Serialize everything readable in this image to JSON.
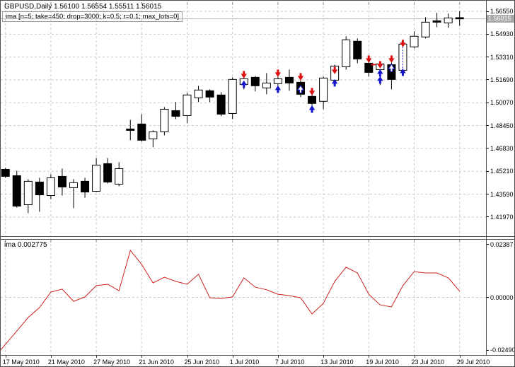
{
  "header": {
    "symbol_line": "GBPUSD,Daily  1.56100 1.56554 1.55511 1.56015",
    "indicator_line": "ima [n=5; take=450; drop=3000; k=0.5; r=0.1; max_lots=0]"
  },
  "subwindow": {
    "label": "ima 0.002775"
  },
  "colors": {
    "grid": "#c9c9c9",
    "bull_body": "#ffffff",
    "bear_body": "#000000",
    "outline": "#000000",
    "indicator_line": "#cc2222",
    "sell_arrow": "#dd1111",
    "buy_arrow": "#1515cc",
    "buy_arrow_white": "#ffffff",
    "price_line": "#b8b8b8",
    "badge_bg": "#a8a8a8",
    "badge_text": "#ffffff",
    "edge_ticks": "#909090"
  },
  "chart_data": {
    "type": "candlestick+line",
    "symbol": "GBPUSD",
    "timeframe": "Daily",
    "ohlc_display": {
      "open": "1.56100",
      "high": "1.56554",
      "low": "1.55511",
      "close": "1.56015"
    },
    "price_axis": {
      "ticks": [
        "1.56550",
        "1.54930",
        "1.53310",
        "1.51690",
        "1.50070",
        "1.48450",
        "1.46830",
        "1.45210",
        "1.43590",
        "1.41970"
      ],
      "current_price": "1.56015",
      "current_price_value": 1.56015
    },
    "indicator_axis": {
      "ticks": [
        "0.02387",
        "0.00000",
        "-0.02490"
      ],
      "tick_values": [
        0.02387,
        0.0,
        -0.0249
      ]
    },
    "x_axis": {
      "labels": [
        {
          "text": "17 May 2010",
          "candle": 1
        },
        {
          "text": "21 May 2010",
          "candle": 5
        },
        {
          "text": "27 May 2010",
          "candle": 9
        },
        {
          "text": "21 Jun 2010",
          "candle": 13
        },
        {
          "text": "25 Jun 2010",
          "candle": 17
        },
        {
          "text": "1 Jul 2010",
          "candle": 21
        },
        {
          "text": "7 Jul 2010",
          "candle": 25
        },
        {
          "text": "13 Jul 2010",
          "candle": 29
        },
        {
          "text": "19 Jul 2010",
          "candle": 33
        },
        {
          "text": "23 Jul 2010",
          "candle": 37
        },
        {
          "text": "29 Jul 2010",
          "candle": 41
        }
      ]
    },
    "candles": [
      [
        1.4535,
        1.4545,
        1.4475,
        1.4485,
        "d"
      ],
      [
        1.449,
        1.4525,
        1.4264,
        1.4274,
        "d"
      ],
      [
        1.4284,
        1.4465,
        1.4224,
        1.445,
        "u"
      ],
      [
        1.4445,
        1.4475,
        1.4234,
        1.4354,
        "d"
      ],
      [
        1.4349,
        1.45,
        1.4324,
        1.4475,
        "u"
      ],
      [
        1.4485,
        1.454,
        1.4349,
        1.441,
        "d"
      ],
      [
        1.4405,
        1.4465,
        1.4259,
        1.444,
        "u"
      ],
      [
        1.445,
        1.4475,
        1.4334,
        1.4374,
        "d"
      ],
      [
        1.4379,
        1.4615,
        1.4374,
        1.4565,
        "u"
      ],
      [
        1.4575,
        1.4615,
        1.4435,
        1.4445,
        "d"
      ],
      [
        1.443,
        1.4585,
        1.4415,
        1.454,
        "u"
      ],
      [
        1.4821,
        1.4886,
        1.4741,
        1.4811,
        "d"
      ],
      [
        1.4856,
        1.4926,
        1.4731,
        1.4741,
        "d"
      ],
      [
        1.4751,
        1.4811,
        1.4691,
        1.4801,
        "u"
      ],
      [
        1.4801,
        1.4976,
        1.4776,
        1.4961,
        "u"
      ],
      [
        1.4951,
        1.5012,
        1.4891,
        1.4911,
        "d"
      ],
      [
        1.4916,
        1.5077,
        1.4861,
        1.5062,
        "u"
      ],
      [
        1.5042,
        1.5127,
        1.5012,
        1.5097,
        "u"
      ],
      [
        1.5092,
        1.5102,
        1.5012,
        1.5047,
        "d"
      ],
      [
        1.5062,
        1.5082,
        1.4911,
        1.4926,
        "d"
      ],
      [
        1.4931,
        1.5187,
        1.4891,
        1.5172,
        "u"
      ],
      [
        1.5137,
        1.5187,
        1.5102,
        1.5177,
        "u"
      ],
      [
        1.5187,
        1.5197,
        1.5087,
        1.5127,
        "d"
      ],
      [
        1.5112,
        1.5217,
        1.5067,
        1.5147,
        "u"
      ],
      [
        1.5142,
        1.5192,
        1.5102,
        1.5177,
        "u"
      ],
      [
        1.5187,
        1.5242,
        1.5092,
        1.5147,
        "d"
      ],
      [
        1.5152,
        1.5167,
        1.5047,
        1.5067,
        "d"
      ],
      [
        1.5052,
        1.5067,
        1.4976,
        1.5002,
        "d"
      ],
      [
        1.5017,
        1.5192,
        1.4961,
        1.5182,
        "u"
      ],
      [
        1.5167,
        1.5277,
        1.5132,
        1.5267,
        "u"
      ],
      [
        1.5262,
        1.5478,
        1.5242,
        1.5453,
        "u"
      ],
      [
        1.5443,
        1.5463,
        1.5287,
        1.5317,
        "d"
      ],
      [
        1.5287,
        1.5312,
        1.5192,
        1.5222,
        "d"
      ],
      [
        1.5242,
        1.5297,
        1.5132,
        1.5282,
        "u"
      ],
      [
        1.5277,
        1.5292,
        1.5102,
        1.5172,
        "d"
      ],
      [
        1.5237,
        1.5438,
        1.5212,
        1.5423,
        "u"
      ],
      [
        1.5403,
        1.5513,
        1.5393,
        1.5478,
        "u"
      ],
      [
        1.5473,
        1.5613,
        1.5463,
        1.5578,
        "u"
      ],
      [
        1.5588,
        1.5644,
        1.5543,
        1.5578,
        "d"
      ],
      [
        1.5573,
        1.5639,
        1.5538,
        1.5608,
        "u"
      ],
      [
        1.561,
        1.56554,
        1.55511,
        1.56015,
        "d"
      ]
    ],
    "trade_arrows": [
      {
        "candle": 22,
        "type": "sell",
        "price": 1.5202
      },
      {
        "candle": 22,
        "type": "buy",
        "price": 1.5142
      },
      {
        "candle": 25,
        "type": "sell",
        "price": 1.5212
      },
      {
        "candle": 25,
        "type": "buy",
        "price": 1.5107
      },
      {
        "candle": 27,
        "type": "sell",
        "price": 1.5187
      },
      {
        "candle": 27,
        "type": "buy_white",
        "price": 1.5107
      },
      {
        "candle": 28,
        "type": "sell",
        "price": 1.5082
      },
      {
        "candle": 28,
        "type": "buy",
        "price": 1.4966
      },
      {
        "candle": 30,
        "type": "sell",
        "price": 1.5232
      },
      {
        "candle": 30,
        "type": "buy",
        "price": 1.5152
      },
      {
        "candle": 33,
        "type": "sell",
        "price": 1.5312
      },
      {
        "candle": 33,
        "type": "dash",
        "price": 1.5277
      },
      {
        "candle": 34,
        "type": "sell",
        "price": 1.5272
      },
      {
        "candle": 34,
        "type": "buy",
        "price": 1.5222
      },
      {
        "candle": 34,
        "type": "buy",
        "price": 1.5172
      },
      {
        "candle": 35,
        "type": "sell",
        "price": 1.5312
      },
      {
        "candle": 35,
        "type": "buy_white",
        "price": 1.5257
      },
      {
        "candle": 36,
        "type": "sell",
        "price": 1.5423
      },
      {
        "candle": 36,
        "type": "dashed_line",
        "price": 1.5403,
        "price2": 1.5243
      },
      {
        "candle": 36,
        "type": "buy",
        "price": 1.5227
      }
    ],
    "indicator": {
      "name": "ima",
      "current_value": "0.002775",
      "values": [
        -0.0212,
        -0.0152,
        -0.0091,
        -0.0046,
        0.0024,
        0.0037,
        -0.0018,
        0.0002,
        0.0053,
        0.0059,
        0.003,
        0.0212,
        0.0148,
        0.0065,
        0.0091,
        0.0072,
        0.0059,
        0.0104,
        -0.0002,
        -0.0005,
        0.0002,
        0.0088,
        0.0046,
        0.0034,
        0.0014,
        0.0008,
        -0.0002,
        -0.0075,
        -0.0027,
        0.0072,
        0.0136,
        0.011,
        0.0014,
        -0.0034,
        -0.0043,
        0.0053,
        0.0116,
        0.011,
        0.011,
        0.0088,
        0.0028
      ]
    }
  }
}
